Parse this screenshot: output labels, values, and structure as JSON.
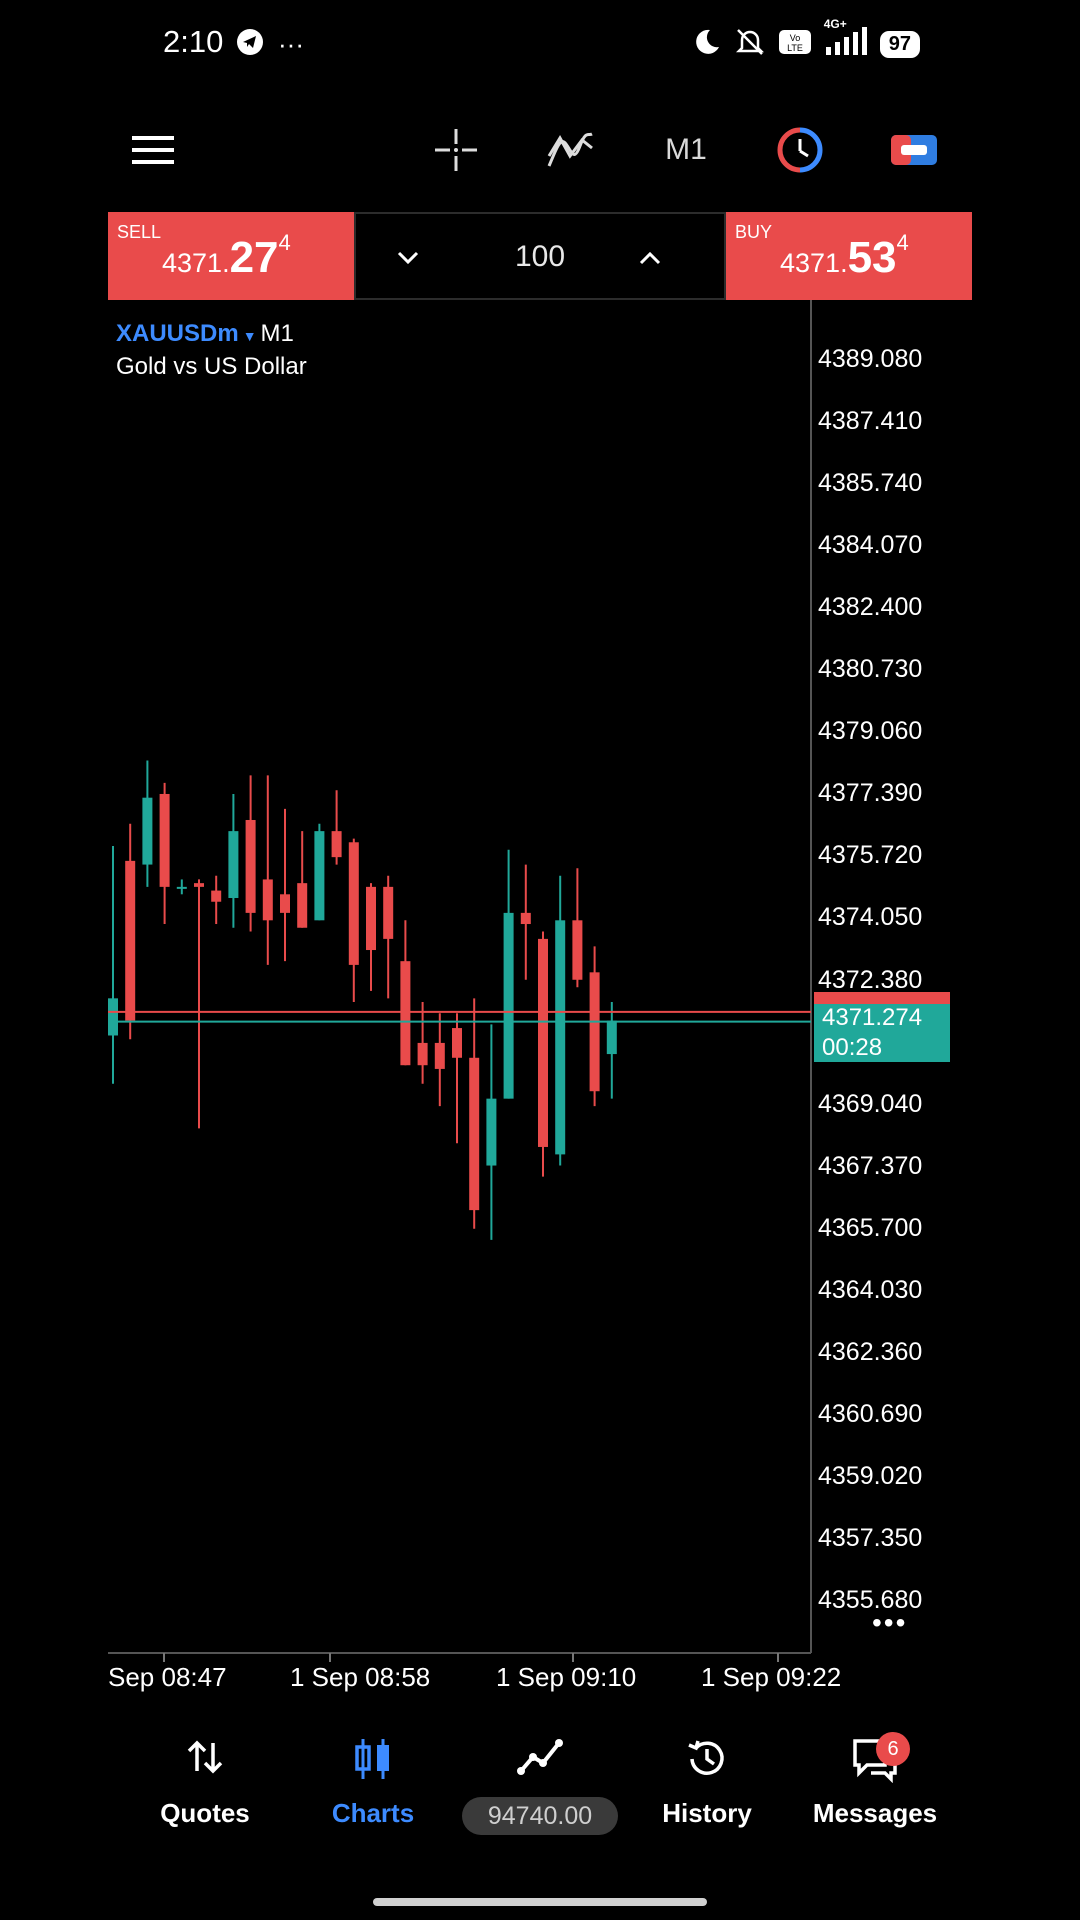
{
  "status_bar": {
    "time": "2:10",
    "overflow": "···",
    "network": "4G+",
    "battery": "97"
  },
  "toolbar": {
    "timeframe": "M1"
  },
  "trade_panel": {
    "sell": {
      "label": "SELL",
      "price_small": "4371.",
      "price_big": "27",
      "price_sup": "4"
    },
    "buy": {
      "label": "BUY",
      "price_small": "4371.",
      "price_big": "53",
      "price_sup": "4"
    },
    "volume": "100"
  },
  "chart": {
    "symbol": "XAUUSDm",
    "timeframe": "M1",
    "description": "Gold vs US Dollar",
    "price_ticks": [
      "4389.080",
      "4387.410",
      "4385.740",
      "4384.070",
      "4382.400",
      "4380.730",
      "4379.060",
      "4377.390",
      "4375.720",
      "4374.050",
      "4372.380",
      "4369.040",
      "4367.370",
      "4365.700",
      "4364.030",
      "4362.360",
      "4360.690",
      "4359.020",
      "4357.350",
      "4355.680"
    ],
    "current_price": "4371.274",
    "timer": "00:28",
    "time_ticks": [
      "Sep 08:47",
      "1 Sep 08:58",
      "1 Sep 09:10",
      "1 Sep 09:22"
    ],
    "colors": {
      "bull": "#20a89a",
      "bear": "#e94b4b",
      "grid_border": "#555555"
    },
    "ask_line": 4371.534,
    "bid_line": 4371.274
  },
  "chart_data": {
    "type": "candlestick",
    "ylim": [
      4354.0,
      4390.5
    ],
    "x_ticks": [
      "Sep 08:47",
      "1 Sep 08:58",
      "1 Sep 09:10",
      "1 Sep 09:22"
    ],
    "candles": [
      {
        "o": 4370.9,
        "h": 4376.0,
        "l": 4369.6,
        "c": 4371.9
      },
      {
        "o": 4375.6,
        "h": 4376.6,
        "l": 4370.8,
        "c": 4371.3
      },
      {
        "o": 4375.5,
        "h": 4378.3,
        "l": 4374.9,
        "c": 4377.3
      },
      {
        "o": 4377.4,
        "h": 4377.7,
        "l": 4373.9,
        "c": 4374.9
      },
      {
        "o": 4374.9,
        "h": 4375.1,
        "l": 4374.7,
        "c": 4374.9
      },
      {
        "o": 4375.0,
        "h": 4375.1,
        "l": 4368.4,
        "c": 4374.9
      },
      {
        "o": 4374.8,
        "h": 4375.2,
        "l": 4373.9,
        "c": 4374.5
      },
      {
        "o": 4374.6,
        "h": 4377.4,
        "l": 4373.8,
        "c": 4376.4
      },
      {
        "o": 4376.7,
        "h": 4377.9,
        "l": 4373.7,
        "c": 4374.2
      },
      {
        "o": 4375.1,
        "h": 4377.9,
        "l": 4372.8,
        "c": 4374.0
      },
      {
        "o": 4374.7,
        "h": 4377.0,
        "l": 4372.9,
        "c": 4374.2
      },
      {
        "o": 4375.0,
        "h": 4376.4,
        "l": 4373.8,
        "c": 4373.8
      },
      {
        "o": 4374.0,
        "h": 4376.6,
        "l": 4374.0,
        "c": 4376.4
      },
      {
        "o": 4376.4,
        "h": 4377.5,
        "l": 4375.5,
        "c": 4375.7
      },
      {
        "o": 4376.1,
        "h": 4376.2,
        "l": 4371.8,
        "c": 4372.8
      },
      {
        "o": 4374.9,
        "h": 4375.0,
        "l": 4372.1,
        "c": 4373.2
      },
      {
        "o": 4374.9,
        "h": 4375.2,
        "l": 4371.9,
        "c": 4373.5
      },
      {
        "o": 4372.9,
        "h": 4374.0,
        "l": 4370.1,
        "c": 4370.1
      },
      {
        "o": 4370.7,
        "h": 4371.8,
        "l": 4369.6,
        "c": 4370.1
      },
      {
        "o": 4370.7,
        "h": 4371.5,
        "l": 4369.0,
        "c": 4370.0
      },
      {
        "o": 4371.1,
        "h": 4371.5,
        "l": 4368.0,
        "c": 4370.3
      },
      {
        "o": 4370.3,
        "h": 4371.9,
        "l": 4365.7,
        "c": 4366.2
      },
      {
        "o": 4367.4,
        "h": 4371.2,
        "l": 4365.4,
        "c": 4369.2
      },
      {
        "o": 4369.2,
        "h": 4375.9,
        "l": 4369.2,
        "c": 4374.2
      },
      {
        "o": 4374.2,
        "h": 4375.5,
        "l": 4372.4,
        "c": 4373.9
      },
      {
        "o": 4373.5,
        "h": 4373.7,
        "l": 4367.1,
        "c": 4367.9
      },
      {
        "o": 4367.7,
        "h": 4375.2,
        "l": 4367.4,
        "c": 4374.0
      },
      {
        "o": 4374.0,
        "h": 4375.4,
        "l": 4372.2,
        "c": 4372.4
      },
      {
        "o": 4372.6,
        "h": 4373.3,
        "l": 4369.0,
        "c": 4369.4
      },
      {
        "o": 4370.4,
        "h": 4371.8,
        "l": 4369.2,
        "c": 4371.3
      }
    ]
  },
  "bottom_nav": {
    "quotes": "Quotes",
    "charts": "Charts",
    "balance": "94740.00",
    "history": "History",
    "messages": "Messages",
    "messages_badge": "6"
  }
}
